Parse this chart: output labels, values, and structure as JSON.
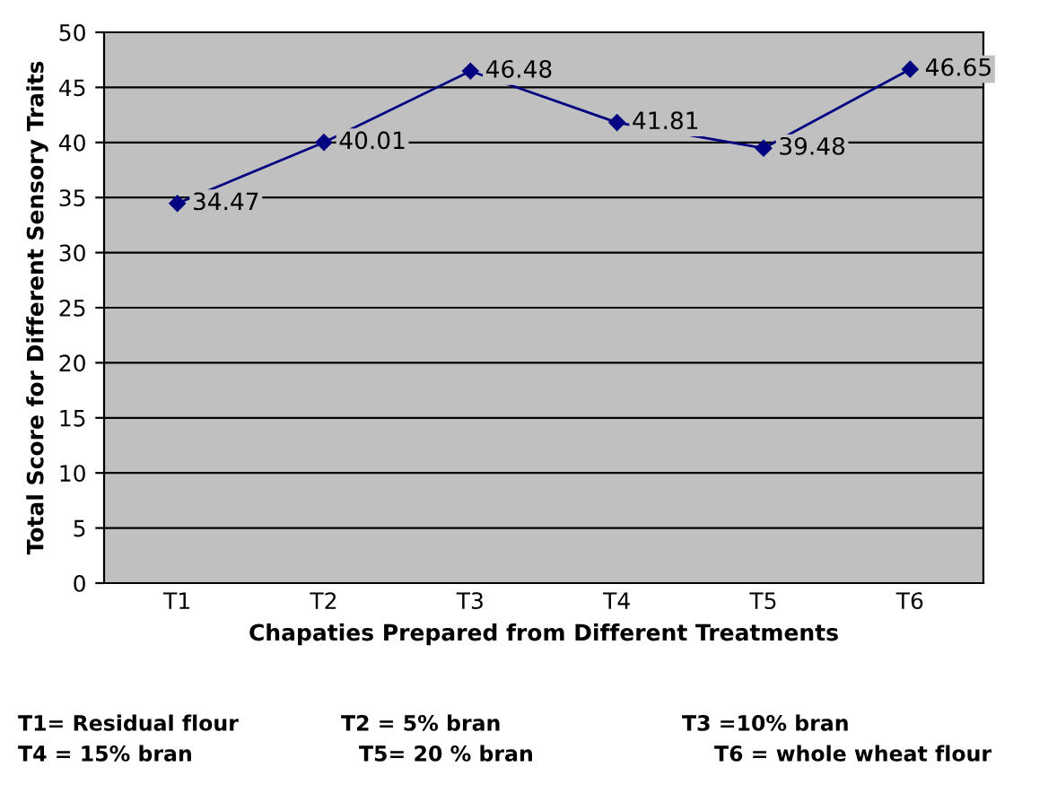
{
  "chart_data": {
    "type": "line",
    "xlabel": "Chapaties Prepared from Different Treatments",
    "ylabel": "Total Score for Different Sensory Traits",
    "categories": [
      "T1",
      "T2",
      "T3",
      "T4",
      "T5",
      "T6"
    ],
    "series": [
      {
        "color": "#000080",
        "values": [
          34.47,
          40.01,
          46.48,
          41.81,
          39.48,
          46.65
        ]
      }
    ],
    "ylim": [
      0,
      50
    ],
    "yticks": [
      0,
      5,
      10,
      15,
      20,
      25,
      30,
      35,
      40,
      45,
      50
    ],
    "grid": "y",
    "marker": "diamond",
    "line_style": "solid",
    "data_labels": true,
    "annotations": [
      "T1= Residual flour",
      "T2 = 5% bran",
      "T3 =10% bran",
      "T4 = 15% bran",
      "T5= 20 % bran",
      "T6 = whole wheat flour"
    ]
  }
}
